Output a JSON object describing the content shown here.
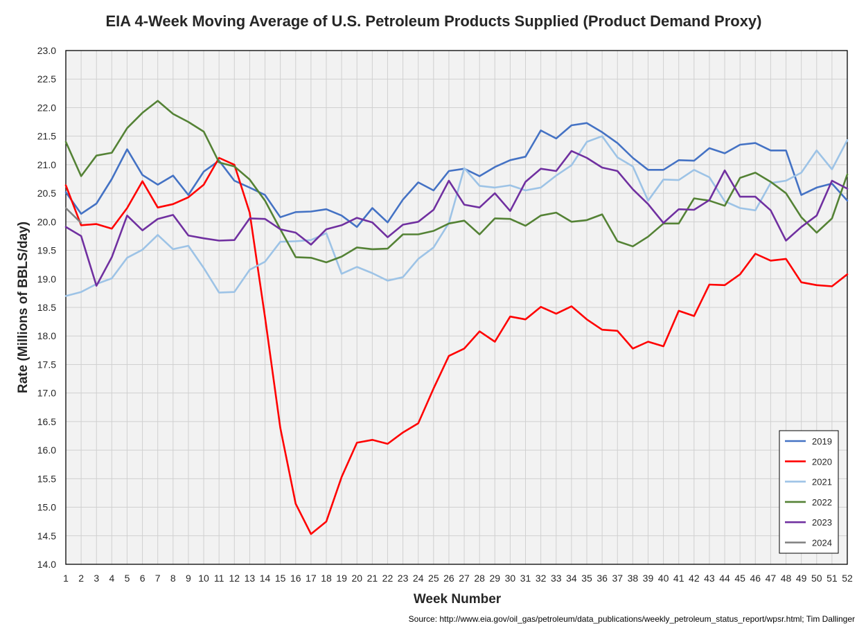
{
  "chart_data": {
    "type": "line",
    "title": "EIA 4-Week Moving Average of U.S. Petroleum Products Supplied (Product Demand Proxy)",
    "xlabel": "Week Number",
    "ylabel": "Rate (Millions of BBLS/day)",
    "source": "Source: http://www.eia.gov/oil_gas/petroleum/data_publications/weekly_petroleum_status_report/wpsr.html; Tim Dallinger",
    "ylim": [
      14.0,
      23.0
    ],
    "xlim": [
      1,
      52
    ],
    "y_ticks": [
      "14.0",
      "14.5",
      "15.0",
      "15.5",
      "16.0",
      "16.5",
      "17.0",
      "17.5",
      "18.0",
      "18.5",
      "19.0",
      "19.5",
      "20.0",
      "20.5",
      "21.0",
      "21.5",
      "22.0",
      "22.5",
      "23.0"
    ],
    "x_ticks": [
      "1",
      "2",
      "3",
      "4",
      "5",
      "6",
      "7",
      "8",
      "9",
      "10",
      "11",
      "12",
      "13",
      "14",
      "15",
      "16",
      "17",
      "18",
      "19",
      "20",
      "21",
      "22",
      "23",
      "24",
      "25",
      "26",
      "27",
      "28",
      "29",
      "30",
      "31",
      "32",
      "33",
      "34",
      "35",
      "36",
      "37",
      "38",
      "39",
      "40",
      "41",
      "42",
      "43",
      "44",
      "45",
      "46",
      "47",
      "48",
      "49",
      "50",
      "51",
      "52"
    ],
    "grid": true,
    "legend_position": "bottom-right",
    "series": [
      {
        "name": "2019",
        "color": "#4472C4",
        "values": [
          20.52,
          20.14,
          20.32,
          20.75,
          21.27,
          20.82,
          20.65,
          20.81,
          20.47,
          20.88,
          21.07,
          20.72,
          20.6,
          20.47,
          20.08,
          20.17,
          20.18,
          20.22,
          20.11,
          19.91,
          20.24,
          19.99,
          20.39,
          20.69,
          20.55,
          20.89,
          20.93,
          20.8,
          20.96,
          21.08,
          21.14,
          21.6,
          21.46,
          21.69,
          21.73,
          21.57,
          21.38,
          21.12,
          20.91,
          20.91,
          21.08,
          21.07,
          21.29,
          21.2,
          21.35,
          21.38,
          21.25,
          21.25,
          20.47,
          20.6,
          20.67,
          20.37
        ]
      },
      {
        "name": "2020",
        "color": "#FF0000",
        "values": [
          20.64,
          19.94,
          19.96,
          19.88,
          20.24,
          20.71,
          20.25,
          20.31,
          20.43,
          20.65,
          21.12,
          21.0,
          20.16,
          18.33,
          16.39,
          15.06,
          14.53,
          14.75,
          15.53,
          16.13,
          16.18,
          16.11,
          16.31,
          16.47,
          17.08,
          17.65,
          17.78,
          18.08,
          17.9,
          18.34,
          18.29,
          18.51,
          18.39,
          18.52,
          18.29,
          18.11,
          18.09,
          17.78,
          17.9,
          17.82,
          18.44,
          18.35,
          18.9,
          18.89,
          19.08,
          19.44,
          19.32,
          19.35,
          18.94,
          18.89,
          18.87,
          19.08
        ]
      },
      {
        "name": "2021",
        "color": "#9DC3E6",
        "values": [
          18.7,
          18.77,
          18.91,
          19.01,
          19.37,
          19.51,
          19.77,
          19.52,
          19.58,
          19.19,
          18.76,
          18.77,
          19.16,
          19.3,
          19.65,
          19.66,
          19.68,
          19.8,
          19.09,
          19.21,
          19.1,
          18.97,
          19.03,
          19.35,
          19.55,
          19.98,
          20.94,
          20.63,
          20.6,
          20.64,
          20.55,
          20.6,
          20.81,
          20.99,
          21.4,
          21.5,
          21.13,
          20.97,
          20.37,
          20.74,
          20.73,
          20.91,
          20.78,
          20.36,
          20.24,
          20.2,
          20.68,
          20.72,
          20.86,
          21.25,
          20.92,
          21.43
        ]
      },
      {
        "name": "2022",
        "color": "#548235",
        "values": [
          21.4,
          20.8,
          21.16,
          21.21,
          21.64,
          21.91,
          22.12,
          21.89,
          21.75,
          21.58,
          21.04,
          20.97,
          20.74,
          20.37,
          19.87,
          19.38,
          19.37,
          19.29,
          19.39,
          19.55,
          19.52,
          19.53,
          19.78,
          19.78,
          19.84,
          19.97,
          20.02,
          19.78,
          20.06,
          20.05,
          19.93,
          20.11,
          20.16,
          20.0,
          20.03,
          20.13,
          19.66,
          19.57,
          19.74,
          19.97,
          19.97,
          20.41,
          20.37,
          20.28,
          20.77,
          20.86,
          20.7,
          20.5,
          20.08,
          19.81,
          20.06,
          20.83
        ]
      },
      {
        "name": "2023",
        "color": "#7030A0",
        "values": [
          19.91,
          19.75,
          18.88,
          19.38,
          20.11,
          19.85,
          20.05,
          20.12,
          19.76,
          19.71,
          19.67,
          19.68,
          20.06,
          20.05,
          19.87,
          19.81,
          19.6,
          19.87,
          19.94,
          20.07,
          19.99,
          19.73,
          19.95,
          20.0,
          20.21,
          20.72,
          20.3,
          20.25,
          20.5,
          20.19,
          20.7,
          20.93,
          20.89,
          21.24,
          21.12,
          20.95,
          20.89,
          20.57,
          20.31,
          19.98,
          20.22,
          20.21,
          20.38,
          20.9,
          20.44,
          20.44,
          20.2,
          19.67,
          19.91,
          20.11,
          20.72,
          20.58
        ]
      },
      {
        "name": "2024",
        "color": "#7F7F7F",
        "values": [
          20.24,
          19.98
        ]
      }
    ]
  }
}
